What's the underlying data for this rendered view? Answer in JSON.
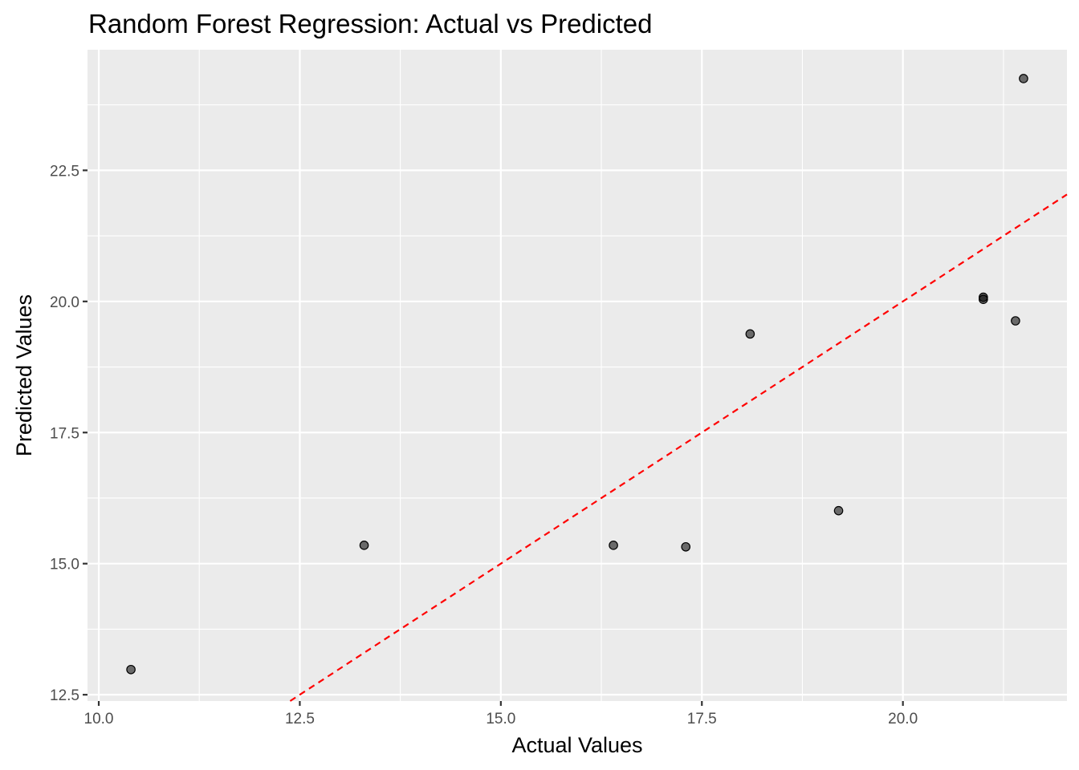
{
  "chart_data": {
    "type": "scatter",
    "title": "Random Forest Regression: Actual vs Predicted",
    "xlabel": "Actual Values",
    "ylabel": "Predicted Values",
    "xlim": [
      9.86,
      22.04
    ],
    "ylim": [
      12.38,
      24.8
    ],
    "x_ticks": [
      "10.0",
      "12.5",
      "15.0",
      "17.5",
      "20.0"
    ],
    "y_ticks": [
      "12.5",
      "15.0",
      "17.5",
      "20.0",
      "22.5"
    ],
    "grid": true,
    "points": [
      {
        "x": 10.4,
        "y": 12.98
      },
      {
        "x": 13.3,
        "y": 15.35
      },
      {
        "x": 16.4,
        "y": 15.35
      },
      {
        "x": 17.3,
        "y": 15.32
      },
      {
        "x": 18.1,
        "y": 19.38
      },
      {
        "x": 19.2,
        "y": 16.01
      },
      {
        "x": 21.0,
        "y": 20.08
      },
      {
        "x": 21.0,
        "y": 20.04
      },
      {
        "x": 21.4,
        "y": 19.63
      },
      {
        "x": 21.5,
        "y": 24.25
      }
    ],
    "reference_line": {
      "slope": 1,
      "intercept": 0,
      "style": "dashed"
    },
    "colors": {
      "points": "#000000",
      "reference_line": "#ff0000",
      "panel": "#ebebeb",
      "grid": "#ffffff"
    }
  }
}
